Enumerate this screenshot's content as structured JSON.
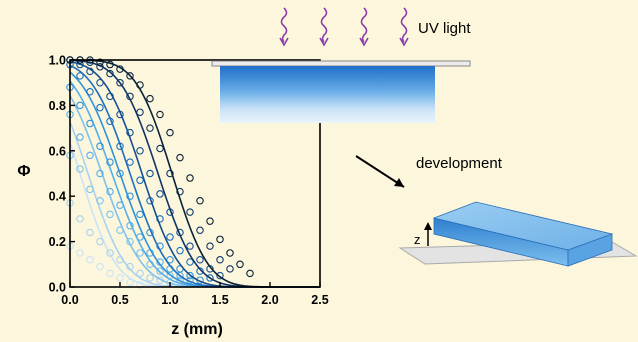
{
  "chart_data": {
    "type": "scatter",
    "ylabel": "Φ",
    "xlabel": "z (mm)",
    "xlim": [
      0,
      2.5
    ],
    "ylim": [
      0,
      1.0
    ],
    "x_ticks": [
      "0.0",
      "0.5",
      "1.0",
      "1.5",
      "2.0",
      "2.5"
    ],
    "y_ticks": [
      "0.0",
      "0.2",
      "0.4",
      "0.6",
      "0.8",
      "1.0"
    ],
    "grid": false,
    "legend": "none",
    "series": [
      {
        "color": "#c9e4f7",
        "z0": 0.1,
        "w": 0.4,
        "x": [
          0.0,
          0.1,
          0.2,
          0.3,
          0.4,
          0.5,
          0.6,
          0.7
        ],
        "y": [
          0.18,
          0.15,
          0.12,
          0.09,
          0.06,
          0.04,
          0.02,
          0.01
        ]
      },
      {
        "color": "#a7d3f2",
        "z0": 0.18,
        "w": 0.42,
        "x": [
          0.0,
          0.1,
          0.2,
          0.3,
          0.4,
          0.5,
          0.6,
          0.7,
          0.8,
          0.9,
          1.0
        ],
        "y": [
          0.37,
          0.3,
          0.24,
          0.2,
          0.15,
          0.12,
          0.09,
          0.06,
          0.04,
          0.03,
          0.02
        ]
      },
      {
        "color": "#7ec2ee",
        "z0": 0.32,
        "w": 0.45,
        "x": [
          0.0,
          0.1,
          0.2,
          0.3,
          0.4,
          0.5,
          0.6,
          0.7,
          0.8,
          0.9,
          1.0,
          1.1
        ],
        "y": [
          0.58,
          0.52,
          0.43,
          0.38,
          0.32,
          0.25,
          0.2,
          0.15,
          0.1,
          0.07,
          0.05,
          0.03
        ]
      },
      {
        "color": "#56aeea",
        "z0": 0.42,
        "w": 0.45,
        "x": [
          0.0,
          0.1,
          0.2,
          0.3,
          0.4,
          0.5,
          0.6,
          0.7,
          0.8,
          0.9,
          1.0,
          1.1,
          1.2
        ],
        "y": [
          0.76,
          0.66,
          0.58,
          0.5,
          0.42,
          0.36,
          0.27,
          0.22,
          0.15,
          0.11,
          0.08,
          0.05,
          0.03
        ]
      },
      {
        "color": "#2f92dc",
        "z0": 0.5,
        "w": 0.44,
        "x": [
          0.0,
          0.1,
          0.2,
          0.3,
          0.4,
          0.5,
          0.6,
          0.7,
          0.8,
          0.9,
          1.0,
          1.1,
          1.2,
          1.3
        ],
        "y": [
          0.88,
          0.8,
          0.72,
          0.62,
          0.55,
          0.5,
          0.4,
          0.32,
          0.24,
          0.18,
          0.12,
          0.08,
          0.05,
          0.03
        ]
      },
      {
        "color": "#1d6fc0",
        "z0": 0.6,
        "w": 0.43,
        "x": [
          0.0,
          0.1,
          0.2,
          0.3,
          0.4,
          0.5,
          0.6,
          0.7,
          0.8,
          0.9,
          1.0,
          1.1,
          1.2,
          1.3,
          1.4
        ],
        "y": [
          0.98,
          0.93,
          0.86,
          0.79,
          0.73,
          0.62,
          0.55,
          0.47,
          0.38,
          0.3,
          0.22,
          0.16,
          0.11,
          0.07,
          0.04
        ]
      },
      {
        "color": "#154f93",
        "z0": 0.72,
        "w": 0.42,
        "x": [
          0.0,
          0.1,
          0.2,
          0.3,
          0.4,
          0.5,
          0.6,
          0.7,
          0.8,
          0.9,
          1.0,
          1.1,
          1.2,
          1.3,
          1.4,
          1.5
        ],
        "y": [
          1.0,
          0.98,
          0.95,
          0.9,
          0.84,
          0.76,
          0.68,
          0.6,
          0.5,
          0.41,
          0.33,
          0.24,
          0.18,
          0.12,
          0.08,
          0.05
        ]
      },
      {
        "color": "#0f3566",
        "z0": 0.88,
        "w": 0.42,
        "x": [
          0.0,
          0.1,
          0.2,
          0.3,
          0.4,
          0.5,
          0.6,
          0.7,
          0.8,
          0.9,
          1.0,
          1.1,
          1.2,
          1.3,
          1.4,
          1.5,
          1.6
        ],
        "y": [
          1.0,
          1.0,
          0.99,
          0.97,
          0.94,
          0.9,
          0.84,
          0.77,
          0.7,
          0.61,
          0.5,
          0.42,
          0.33,
          0.25,
          0.18,
          0.12,
          0.08
        ]
      },
      {
        "color": "#0a2238",
        "z0": 1.02,
        "w": 0.4,
        "x": [
          0.0,
          0.1,
          0.2,
          0.3,
          0.4,
          0.5,
          0.6,
          0.7,
          0.8,
          0.9,
          1.0,
          1.1,
          1.2,
          1.3,
          1.4,
          1.5,
          1.6,
          1.7,
          1.8
        ],
        "y": [
          1.0,
          1.0,
          1.0,
          0.99,
          0.98,
          0.96,
          0.93,
          0.89,
          0.83,
          0.76,
          0.68,
          0.57,
          0.48,
          0.38,
          0.29,
          0.21,
          0.15,
          0.1,
          0.06
        ]
      }
    ]
  },
  "illustration": {
    "uv_label": "UV light",
    "development_label": "development",
    "z_axis_label": "z",
    "colors": {
      "arrow_purple": "#8b3fa8",
      "block_top": "#8ec4ee",
      "block_side": "#3b86d3",
      "plate": "#e3e3e3"
    }
  }
}
